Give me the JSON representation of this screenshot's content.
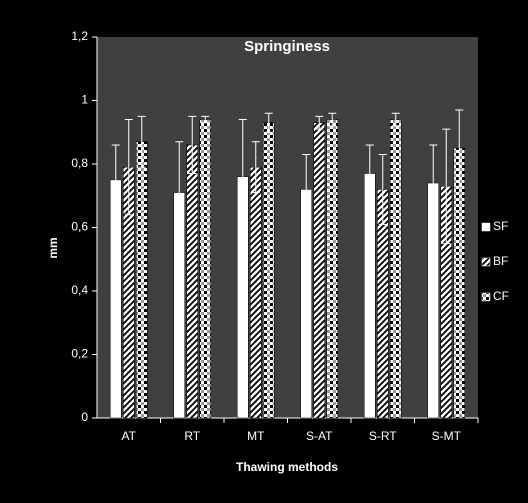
{
  "chart_data": {
    "type": "bar",
    "title": "Springiness",
    "x_label": "Thawing methods",
    "y_label": "mm",
    "categories": [
      "AT",
      "RT",
      "MT",
      "S-AT",
      "S-RT",
      "S-MT"
    ],
    "series": [
      {
        "name": "SF",
        "color": "#ffffff",
        "pattern": "solid",
        "values": [
          0.75,
          0.71,
          0.76,
          0.72,
          0.77,
          0.74
        ],
        "errors": [
          0.11,
          0.16,
          0.18,
          0.11,
          0.09,
          0.12
        ]
      },
      {
        "name": "BF",
        "color": "#ffffff",
        "pattern": "diagonal",
        "values": [
          0.79,
          0.86,
          0.79,
          0.93,
          0.72,
          0.73
        ],
        "errors": [
          0.15,
          0.09,
          0.08,
          0.02,
          0.11,
          0.18
        ]
      },
      {
        "name": "CF",
        "color": "#ffffff",
        "pattern": "checker",
        "values": [
          0.87,
          0.94,
          0.93,
          0.94,
          0.94,
          0.85
        ],
        "errors": [
          0.08,
          0.01,
          0.03,
          0.02,
          0.02,
          0.12
        ]
      }
    ],
    "ylim": [
      0,
      1.2
    ],
    "yticks": [
      0,
      {
        "value": 0.2,
        "label": "0,2"
      },
      {
        "value": 0.4,
        "label": "0,4"
      },
      {
        "value": 0.6,
        "label": "0,6"
      },
      {
        "value": 0.8,
        "label": "0,8"
      },
      1,
      {
        "value": 1.2,
        "label": "1,2"
      }
    ],
    "legend": "right"
  }
}
